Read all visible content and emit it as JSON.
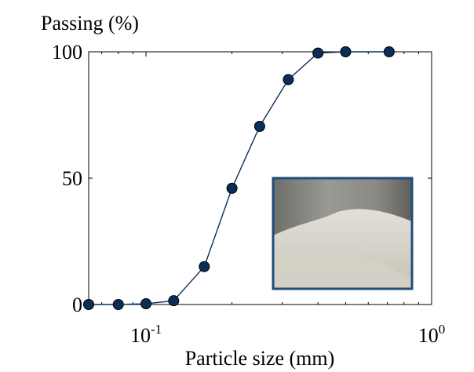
{
  "chart_data": {
    "type": "line",
    "title": "",
    "ylabel": "Passing (%)",
    "xlabel": "Particle size (mm)",
    "xscale": "log",
    "xlim": [
      0.063,
      1.0
    ],
    "ylim": [
      0,
      100
    ],
    "yticks": [
      {
        "value": 0,
        "label": "0"
      },
      {
        "value": 50,
        "label": "50"
      },
      {
        "value": 100,
        "label": "100"
      }
    ],
    "xticks": [
      {
        "value": 0.1,
        "base": "10",
        "exp": "-1"
      },
      {
        "value": 1.0,
        "base": "10",
        "exp": "0"
      }
    ],
    "series": [
      {
        "x": [
          0.063,
          0.08,
          0.1,
          0.125,
          0.16,
          0.2,
          0.25,
          0.315,
          0.4,
          0.5,
          0.71
        ],
        "y": [
          0,
          0,
          0.3,
          1.5,
          15,
          46,
          70.5,
          89,
          99.5,
          100,
          100
        ],
        "color": "#0b2e59",
        "marker": "circle"
      }
    ],
    "grid": false,
    "inset_image": "sand-sample-photo"
  }
}
